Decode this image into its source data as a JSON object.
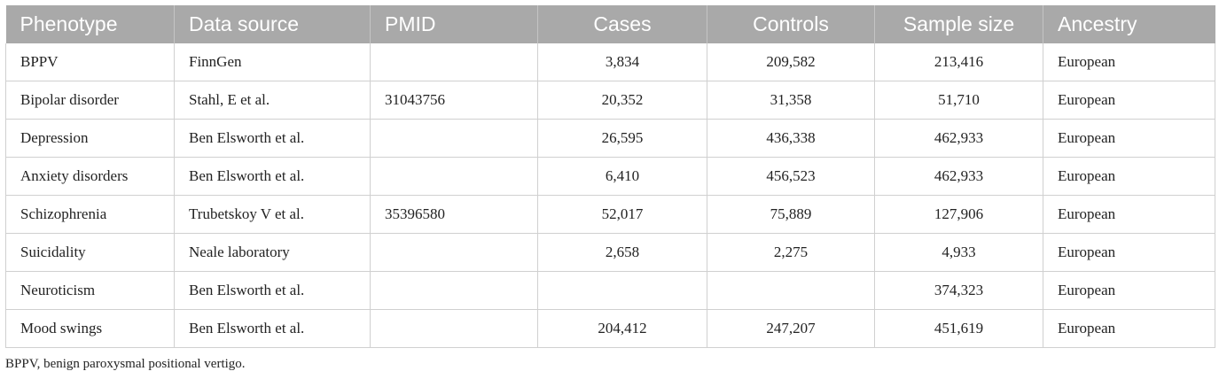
{
  "table": {
    "headers": [
      "Phenotype",
      "Data source",
      "PMID",
      "Cases",
      "Controls",
      "Sample size",
      "Ancestry"
    ],
    "rows": [
      [
        "BPPV",
        "FinnGen",
        "",
        "3,834",
        "209,582",
        "213,416",
        "European"
      ],
      [
        "Bipolar disorder",
        "Stahl, E et al.",
        "31043756",
        "20,352",
        "31,358",
        "51,710",
        "European"
      ],
      [
        "Depression",
        "Ben Elsworth et al.",
        "",
        "26,595",
        "436,338",
        "462,933",
        "European"
      ],
      [
        "Anxiety disorders",
        "Ben Elsworth et al.",
        "",
        "6,410",
        "456,523",
        "462,933",
        "European"
      ],
      [
        "Schizophrenia",
        "Trubetskoy V et al.",
        "35396580",
        "52,017",
        "75,889",
        "127,906",
        "European"
      ],
      [
        "Suicidality",
        "Neale laboratory",
        "",
        "2,658",
        "2,275",
        "4,933",
        "European"
      ],
      [
        "Neuroticism",
        "Ben Elsworth et al.",
        "",
        "",
        "",
        "374,323",
        "European"
      ],
      [
        "Mood swings",
        "Ben Elsworth et al.",
        "",
        "204,412",
        "247,207",
        "451,619",
        "European"
      ]
    ]
  },
  "footnote": "BPPV, benign paroxysmal positional vertigo.",
  "colors": {
    "header_bg": "#a9a9a9",
    "header_text": "#ffffff",
    "grid": "#d0d0d0"
  }
}
